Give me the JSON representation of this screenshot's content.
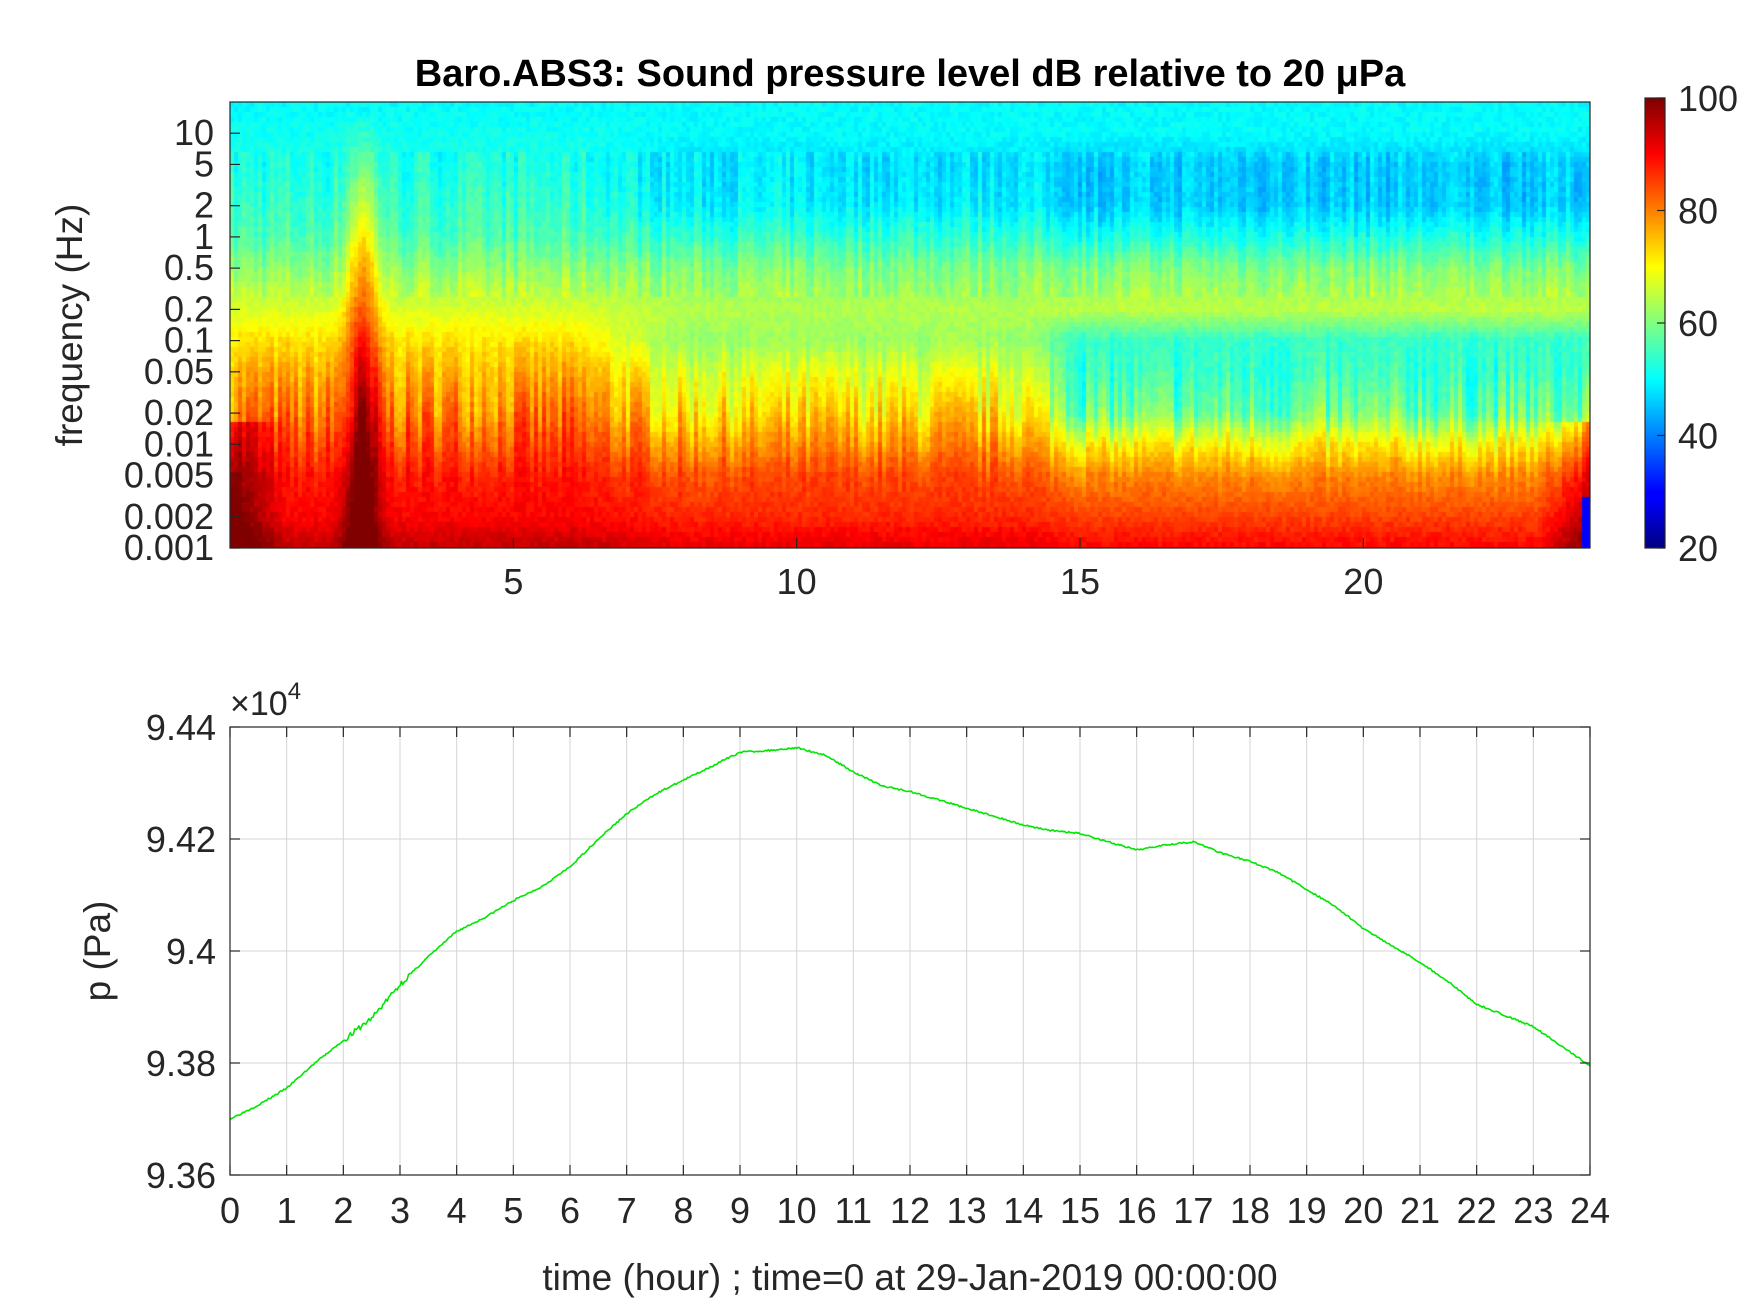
{
  "colors": {
    "line": "#00e600",
    "axis": "#262626",
    "grid": "#d4d4d4",
    "colormap": "jet"
  },
  "chart_data": [
    {
      "type": "heatmap",
      "title": "Baro.ABS3: Sound pressure level dB relative to 20 μPa",
      "ylabel": "frequency (Hz)",
      "xlabel": "",
      "xlim": [
        0,
        24
      ],
      "x_ticks": [
        "5",
        "10",
        "15",
        "20"
      ],
      "x_tick_values": [
        5,
        10,
        15,
        20
      ],
      "y_scale": "log",
      "ylim": [
        0.001,
        20
      ],
      "y_ticks": [
        "0.001",
        "0.002",
        "0.005",
        "0.01",
        "0.02",
        "0.05",
        "0.1",
        "0.2",
        "0.5",
        "1",
        "2",
        "5",
        "10"
      ],
      "y_tick_values": [
        0.001,
        0.002,
        0.005,
        0.01,
        0.02,
        0.05,
        0.1,
        0.2,
        0.5,
        1,
        2,
        5,
        10
      ],
      "colorbar": {
        "min": 20,
        "max": 100,
        "ticks": [
          "20",
          "40",
          "60",
          "80",
          "100"
        ],
        "tick_values": [
          20,
          40,
          60,
          80,
          100
        ]
      },
      "level_profile_db": {
        "frequency_hz": [
          0.001,
          0.002,
          0.005,
          0.01,
          0.02,
          0.05,
          0.1,
          0.2,
          0.5,
          1,
          2,
          5,
          10,
          20
        ],
        "hour_0_to_7": [
          95,
          90,
          88,
          84,
          80,
          76,
          72,
          67,
          61,
          56,
          54,
          52,
          51,
          50
        ],
        "hour_7_to_14": [
          92,
          87,
          84,
          78,
          72,
          67,
          62,
          64,
          60,
          54,
          49,
          48,
          50,
          50
        ],
        "hour_14_to_24": [
          90,
          85,
          79,
          70,
          58,
          54,
          54,
          65,
          60,
          52,
          46,
          46,
          50,
          50
        ]
      }
    },
    {
      "type": "line",
      "xlabel": "time (hour) ; time=0 at 29-Jan-2019 00:00:00",
      "ylabel": "p (Pa)",
      "y_exponent_label": "×10",
      "y_exponent": "4",
      "xlim": [
        0,
        24
      ],
      "ylim": [
        93600,
        94400
      ],
      "grid": true,
      "x_ticks": [
        "0",
        "1",
        "2",
        "3",
        "4",
        "5",
        "6",
        "7",
        "8",
        "9",
        "10",
        "11",
        "12",
        "13",
        "14",
        "15",
        "16",
        "17",
        "18",
        "19",
        "20",
        "21",
        "22",
        "23",
        "24"
      ],
      "y_ticks": [
        "9.36",
        "9.38",
        "9.4",
        "9.42",
        "9.44"
      ],
      "y_tick_values": [
        93600,
        93800,
        94000,
        94200,
        94400
      ],
      "series": [
        {
          "x": [
            0,
            0.5,
            1,
            1.5,
            2,
            2.5,
            3,
            3.5,
            4,
            4.5,
            5,
            5.5,
            6,
            6.5,
            7,
            7.5,
            8,
            8.5,
            9,
            9.5,
            10,
            10.5,
            11,
            11.5,
            12,
            12.5,
            13,
            13.5,
            14,
            14.5,
            15,
            15.5,
            16,
            16.5,
            17,
            17.5,
            18,
            18.5,
            19,
            19.5,
            20,
            20.5,
            21,
            21.5,
            22,
            22.5,
            23,
            23.5,
            24
          ],
          "y": [
            93700,
            93725,
            93755,
            93800,
            93840,
            93880,
            93940,
            93990,
            94035,
            94060,
            94090,
            94115,
            94150,
            94200,
            94245,
            94280,
            94305,
            94330,
            94355,
            94358,
            94363,
            94350,
            94320,
            94295,
            94285,
            94270,
            94255,
            94240,
            94225,
            94215,
            94210,
            94195,
            94180,
            94190,
            94195,
            94175,
            94160,
            94140,
            94110,
            94080,
            94040,
            94010,
            93980,
            93945,
            93905,
            93885,
            93865,
            93830,
            93795
          ]
        }
      ]
    }
  ]
}
